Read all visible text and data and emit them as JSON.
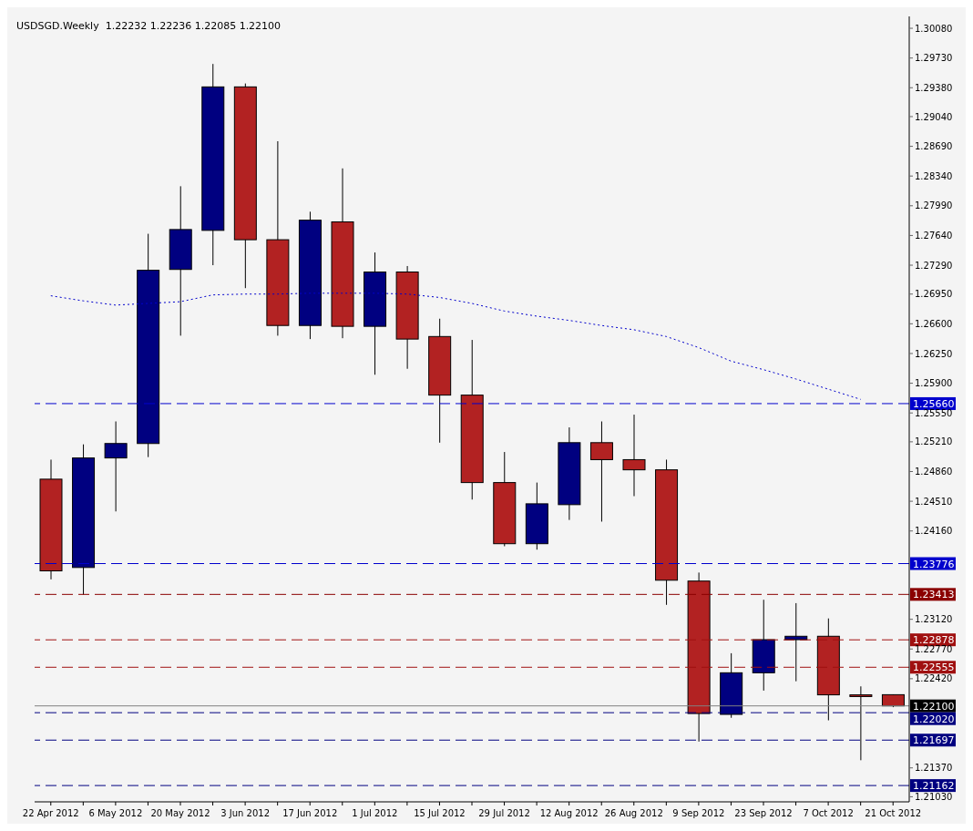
{
  "chart_data": {
    "type": "candlestick",
    "title": "USDSGD.Weekly  1.22232 1.22236 1.22085 1.22100",
    "categories": [
      "22 Apr 2012",
      null,
      "6 May 2012",
      null,
      "20 May 2012",
      null,
      "3 Jun 2012",
      null,
      "17 Jun 2012",
      null,
      "1 Jul 2012",
      null,
      "15 Jul 2012",
      null,
      "29 Jul 2012",
      null,
      "12 Aug 2012",
      null,
      "26 Aug 2012",
      null,
      "9 Sep 2012",
      null,
      "23 Sep 2012",
      null,
      "7 Oct 2012",
      null,
      "21 Oct 2012"
    ],
    "ohlc": [
      [
        1.2477,
        1.25,
        1.2359,
        1.2369
      ],
      [
        1.2373,
        1.2518,
        1.2341,
        1.2502
      ],
      [
        1.2502,
        1.2545,
        1.2439,
        1.2519
      ],
      [
        1.2519,
        1.2766,
        1.2503,
        1.2723
      ],
      [
        1.2724,
        1.2822,
        1.2646,
        1.2771
      ],
      [
        1.277,
        1.2966,
        1.2729,
        1.2939
      ],
      [
        1.2939,
        1.2943,
        1.2702,
        1.2759
      ],
      [
        1.2759,
        1.2875,
        1.2646,
        1.2658
      ],
      [
        1.2658,
        1.2792,
        1.2642,
        1.2782
      ],
      [
        1.278,
        1.2843,
        1.2643,
        1.2657
      ],
      [
        1.2657,
        1.2744,
        1.26,
        1.2721
      ],
      [
        1.2721,
        1.2728,
        1.2607,
        1.2642
      ],
      [
        1.2645,
        1.2666,
        1.252,
        1.2576
      ],
      [
        1.2576,
        1.2641,
        1.2453,
        1.2473
      ],
      [
        1.2473,
        1.2509,
        1.2398,
        1.2401
      ],
      [
        1.2401,
        1.2473,
        1.2394,
        1.2448
      ],
      [
        1.2447,
        1.2538,
        1.2429,
        1.252
      ],
      [
        1.252,
        1.2545,
        1.2427,
        1.25
      ],
      [
        1.25,
        1.2553,
        1.2457,
        1.2488
      ],
      [
        1.2488,
        1.25,
        1.2329,
        1.2358
      ],
      [
        1.2357,
        1.2367,
        1.2168,
        1.2201
      ],
      [
        1.22,
        1.2272,
        1.2196,
        1.2249
      ],
      [
        1.2249,
        1.2335,
        1.2228,
        1.2288
      ],
      [
        1.2288,
        1.2331,
        1.2239,
        1.2292
      ],
      [
        1.2292,
        1.2313,
        1.2193,
        1.2223
      ],
      [
        1.2223,
        1.2233,
        1.2146,
        1.2221
      ],
      [
        1.22232,
        1.22236,
        1.22085,
        1.221
      ]
    ],
    "colors": [
      "#b22222",
      "#000080",
      "#000080",
      "#000080",
      "#000080",
      "#000080",
      "#b22222",
      "#b22222",
      "#000080",
      "#b22222",
      "#000080",
      "#b22222",
      "#b22222",
      "#b22222",
      "#b22222",
      "#000080",
      "#000080",
      "#b22222",
      "#b22222",
      "#b22222",
      "#b22222",
      "#000080",
      "#000080",
      "#000080",
      "#b22222",
      "#b22222",
      "#b22222"
    ],
    "series": [
      {
        "type": "line",
        "color": "#0000cc",
        "line_style": "dotted",
        "values": [
          1.2693,
          1.2687,
          1.2682,
          1.2684,
          1.2686,
          1.2694,
          1.2695,
          1.2695,
          1.2696,
          1.2696,
          1.2696,
          1.2695,
          1.2691,
          1.2684,
          1.2675,
          1.2669,
          1.2664,
          1.2658,
          1.2653,
          1.2645,
          1.2632,
          1.2616,
          1.2606,
          1.2595,
          1.2583,
          1.2571,
          null
        ]
      }
    ],
    "ylim": [
      1.2097,
      1.3022
    ],
    "yticks": [
      {
        "value": 1.3008,
        "label": "1.30080"
      },
      {
        "value": 1.2973,
        "label": "1.29730"
      },
      {
        "value": 1.2938,
        "label": "1.29380"
      },
      {
        "value": 1.2904,
        "label": "1.29040"
      },
      {
        "value": 1.2869,
        "label": "1.28690"
      },
      {
        "value": 1.2834,
        "label": "1.28340"
      },
      {
        "value": 1.2799,
        "label": "1.27990"
      },
      {
        "value": 1.2764,
        "label": "1.27640"
      },
      {
        "value": 1.2729,
        "label": "1.27290"
      },
      {
        "value": 1.2695,
        "label": "1.26950"
      },
      {
        "value": 1.266,
        "label": "1.26600"
      },
      {
        "value": 1.2625,
        "label": "1.26250"
      },
      {
        "value": 1.259,
        "label": "1.25900"
      },
      {
        "value": 1.2555,
        "label": "1.25550"
      },
      {
        "value": 1.2521,
        "label": "1.25210"
      },
      {
        "value": 1.2486,
        "label": "1.24860"
      },
      {
        "value": 1.2451,
        "label": "1.24510"
      },
      {
        "value": 1.2416,
        "label": "1.24160"
      },
      {
        "value": 1.2312,
        "label": "1.23120"
      },
      {
        "value": 1.2277,
        "label": "1.22770"
      },
      {
        "value": 1.2242,
        "label": "1.22420"
      },
      {
        "value": 1.2137,
        "label": "1.21370"
      },
      {
        "value": 1.2103,
        "label": "1.21030"
      }
    ],
    "ref_lines": [
      {
        "axis": "y",
        "value": 1.2566,
        "label": "1.25660",
        "color": "#0000cd",
        "line_style": "dashed"
      },
      {
        "axis": "y",
        "value": 1.23776,
        "label": "1.23776",
        "color": "#0000cd",
        "line_style": "dashed"
      },
      {
        "axis": "y",
        "value": 1.23413,
        "label": "1.23413",
        "color": "#8b0000",
        "line_style": "dashed"
      },
      {
        "axis": "y",
        "value": 1.22878,
        "label": "1.22878",
        "color": "#a01010",
        "line_style": "dashed"
      },
      {
        "axis": "y",
        "value": 1.22555,
        "label": "1.22555",
        "color": "#a01010",
        "line_style": "dashed"
      },
      {
        "axis": "y",
        "value": 1.221,
        "label": "1.22100",
        "color": "#808080",
        "line_style": "solid"
      },
      {
        "axis": "y",
        "value": 1.2202,
        "label": "1.22020",
        "color": "#000080",
        "line_style": "dashed"
      },
      {
        "axis": "y",
        "value": 1.21697,
        "label": "1.21697",
        "color": "#000080",
        "line_style": "dashed"
      },
      {
        "axis": "y",
        "value": 1.21162,
        "label": "1.21162",
        "color": "#000080",
        "line_style": "dashed"
      }
    ]
  }
}
